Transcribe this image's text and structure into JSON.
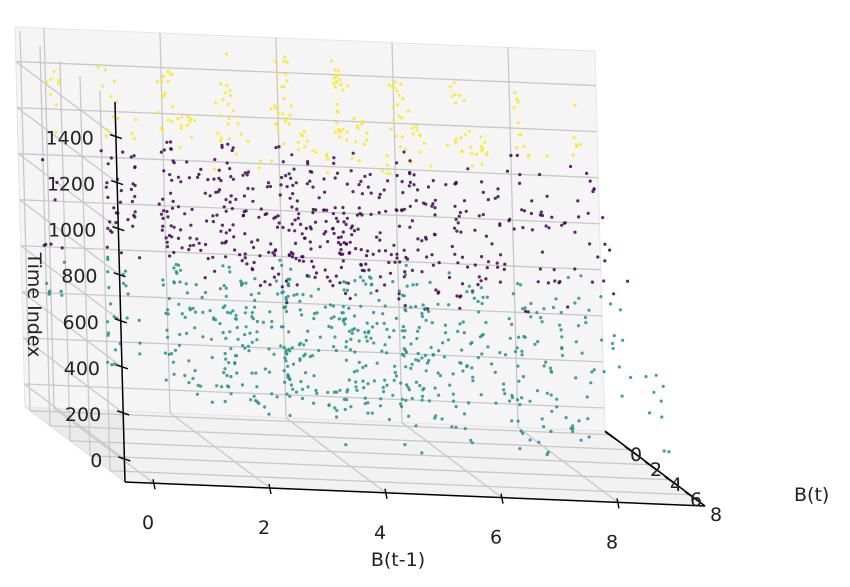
{
  "chart_data": {
    "type": "scatter",
    "projection": "3d",
    "title": "",
    "xlabel": "B(t-1)",
    "ylabel": "B(t)",
    "zlabel": "Time Index",
    "xlim": [
      -0.5,
      9.5
    ],
    "ylim": [
      -0.5,
      9.5
    ],
    "zlim": [
      -100,
      1550
    ],
    "xticks": [
      "0",
      "2",
      "4",
      "6",
      "8"
    ],
    "yticks": [
      "0",
      "2",
      "4",
      "6",
      "8"
    ],
    "zticks": [
      "0",
      "200",
      "400",
      "600",
      "800",
      "1000",
      "1200",
      "1400"
    ],
    "grid": true,
    "legend": "none",
    "colormap": "viridis",
    "series": [
      {
        "color": "#21918c",
        "z_range": [
          0,
          600
        ]
      },
      {
        "color": "#440154",
        "z_range": [
          600,
          1100
        ]
      },
      {
        "color": "#fde725",
        "z_range": [
          1100,
          1500
        ]
      }
    ],
    "columns": [
      {
        "x": 0,
        "y": 0,
        "z": [
          380,
          1400
        ],
        "density": 0.25
      },
      {
        "x": 1,
        "y": 0,
        "z": [
          100,
          1450
        ],
        "density": 0.5
      },
      {
        "x": 2,
        "y": 0,
        "z": [
          50,
          1450
        ],
        "density": 0.9
      },
      {
        "x": 3,
        "y": 0,
        "z": [
          0,
          1500
        ],
        "density": 1.0
      },
      {
        "x": 4,
        "y": 0,
        "z": [
          0,
          1500
        ],
        "density": 1.0
      },
      {
        "x": 5,
        "y": 0,
        "z": [
          0,
          1500
        ],
        "density": 0.9
      },
      {
        "x": 6,
        "y": 0,
        "z": [
          0,
          1450
        ],
        "density": 0.7
      },
      {
        "x": 7,
        "y": 0,
        "z": [
          100,
          1400
        ],
        "density": 0.5
      },
      {
        "x": 8,
        "y": 0,
        "z": [
          200,
          1400
        ],
        "density": 0.3
      },
      {
        "x": 9,
        "y": 0,
        "z": [
          300,
          1350
        ],
        "density": 0.2
      },
      {
        "x": 1,
        "y": 2,
        "z": [
          100,
          1300
        ],
        "density": 0.3
      },
      {
        "x": 2,
        "y": 2,
        "z": [
          50,
          1300
        ],
        "density": 0.5
      },
      {
        "x": 3,
        "y": 2,
        "z": [
          0,
          1300
        ],
        "density": 0.7
      },
      {
        "x": 4,
        "y": 2,
        "z": [
          0,
          1300
        ],
        "density": 0.8
      },
      {
        "x": 5,
        "y": 2,
        "z": [
          0,
          1300
        ],
        "density": 0.8
      },
      {
        "x": 6,
        "y": 2,
        "z": [
          0,
          1300
        ],
        "density": 0.6
      },
      {
        "x": 7,
        "y": 2,
        "z": [
          50,
          1250
        ],
        "density": 0.5
      },
      {
        "x": 8,
        "y": 2,
        "z": [
          100,
          1200
        ],
        "density": 0.3
      },
      {
        "x": 9,
        "y": 2,
        "z": [
          200,
          1150
        ],
        "density": 0.2
      },
      {
        "x": 2,
        "y": 4,
        "z": [
          50,
          1200
        ],
        "density": 0.3
      },
      {
        "x": 3,
        "y": 4,
        "z": [
          0,
          1200
        ],
        "density": 0.4
      },
      {
        "x": 4,
        "y": 4,
        "z": [
          0,
          1200
        ],
        "density": 0.5
      },
      {
        "x": 5,
        "y": 4,
        "z": [
          0,
          1200
        ],
        "density": 0.5
      },
      {
        "x": 6,
        "y": 4,
        "z": [
          0,
          1150
        ],
        "density": 0.4
      },
      {
        "x": 7,
        "y": 4,
        "z": [
          50,
          1100
        ],
        "density": 0.3
      },
      {
        "x": 8,
        "y": 4,
        "z": [
          100,
          1000
        ],
        "density": 0.25
      },
      {
        "x": 9,
        "y": 4,
        "z": [
          150,
          900
        ],
        "density": 0.15
      },
      {
        "x": 3,
        "y": 6,
        "z": [
          0,
          1000
        ],
        "density": 0.2
      },
      {
        "x": 4,
        "y": 6,
        "z": [
          0,
          950
        ],
        "density": 0.25
      },
      {
        "x": 5,
        "y": 6,
        "z": [
          0,
          900
        ],
        "density": 0.25
      },
      {
        "x": 6,
        "y": 6,
        "z": [
          0,
          850
        ],
        "density": 0.2
      },
      {
        "x": 7,
        "y": 6,
        "z": [
          0,
          750
        ],
        "density": 0.2
      },
      {
        "x": 8,
        "y": 6,
        "z": [
          50,
          650
        ],
        "density": 0.15
      },
      {
        "x": 5,
        "y": 8,
        "z": [
          0,
          700
        ],
        "density": 0.1
      },
      {
        "x": 7,
        "y": 8,
        "z": [
          0,
          500
        ],
        "density": 0.1
      },
      {
        "x": 9,
        "y": 8,
        "z": [
          50,
          450
        ],
        "density": 0.1
      }
    ]
  }
}
